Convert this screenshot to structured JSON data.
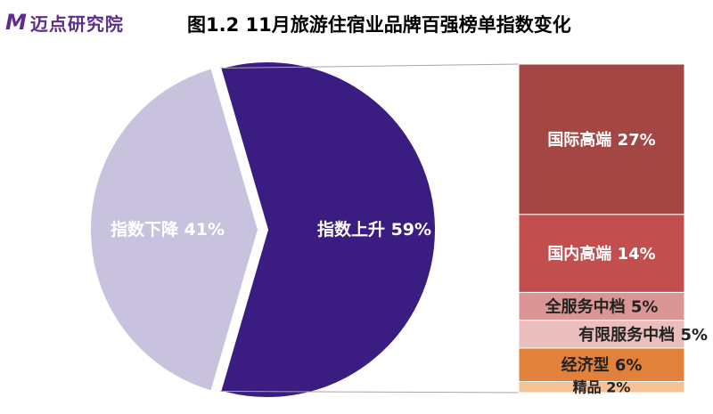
{
  "brand": {
    "logo_text": "迈点研究院",
    "logo_mark": "M",
    "color": "#5b2d8e"
  },
  "chart_data": {
    "type": "pie",
    "title": "图1.2 11月旅游住宿业品牌百强榜单指数变化",
    "pie": {
      "slices": [
        {
          "label": "指数上升",
          "value": 59,
          "display": "指数上升 59%",
          "color": "#3b1d82"
        },
        {
          "label": "指数下降",
          "value": 41,
          "display": "指数下降 41%",
          "color": "#c9c2de"
        }
      ]
    },
    "breakdown": {
      "of": "指数上升",
      "segments": [
        {
          "label": "国际高端",
          "value": 27,
          "display": "国际高端 27%",
          "color": "#a44643"
        },
        {
          "label": "国内高端",
          "value": 14,
          "display": "国内高端 14%",
          "color": "#c24f4d"
        },
        {
          "label": "全服务中档",
          "value": 5,
          "display": "全服务中档 5%",
          "color": "#d99694"
        },
        {
          "label": "有限服务中档",
          "value": 5,
          "display": "有限服务中档 5%",
          "color": "#e9bebc"
        },
        {
          "label": "经济型",
          "value": 6,
          "display": "经济型 6%",
          "color": "#e1813a"
        },
        {
          "label": "精品",
          "value": 2,
          "display": "精品 2%",
          "color": "#f6c195"
        }
      ]
    }
  }
}
